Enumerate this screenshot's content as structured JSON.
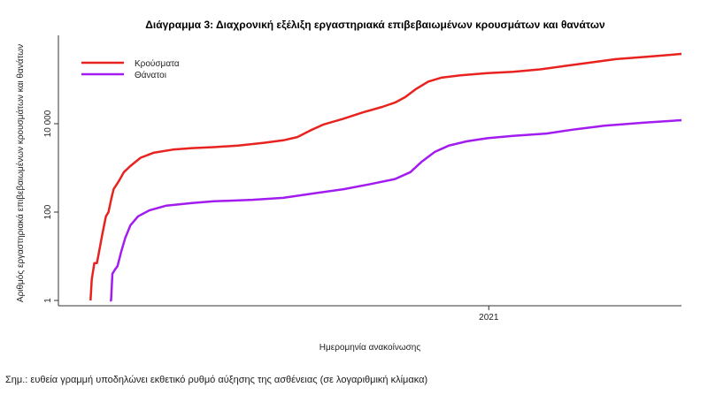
{
  "note": "Σημ.: ευθεία γραμμή υποδηλώνει εκθετικό ρυθμό αύξησης της ασθένειας (σε λογαριθμική κλίμακα)",
  "chart_data": {
    "type": "line",
    "title": "Διάγραμμα 3: Διαχρονική εξέλιξη εργαστηριακά επιβεβαιωμένων κρουσμάτων και θανάτων",
    "xlabel": "Ημερομηνία ανακοίνωσης",
    "ylabel": "Αριθμός εργαστηριακά επιβεβαιωμένων κρουσμάτων και θανάτων",
    "y_scale": "log",
    "ylim": [
      1,
      1000000
    ],
    "y_ticks": [
      {
        "value": 1,
        "label": "1"
      },
      {
        "value": 100,
        "label": "100"
      },
      {
        "value": 10000,
        "label": "10 000"
      }
    ],
    "x_ticks": [
      {
        "value": "2021-01-01",
        "label": "2021"
      }
    ],
    "xlim": [
      "2020-02-01",
      "2021-05-31"
    ],
    "grid": false,
    "legend_position": "top-left",
    "series": [
      {
        "name": "Κρούσματα",
        "color": "#e8231f",
        "points": [
          [
            "2020-02-26",
            1
          ],
          [
            "2020-02-27",
            3
          ],
          [
            "2020-02-29",
            7
          ],
          [
            "2020-03-02",
            7
          ],
          [
            "2020-03-03",
            10
          ],
          [
            "2020-03-06",
            30
          ],
          [
            "2020-03-09",
            80
          ],
          [
            "2020-03-11",
            100
          ],
          [
            "2020-03-13",
            190
          ],
          [
            "2020-03-15",
            330
          ],
          [
            "2020-03-19",
            500
          ],
          [
            "2020-03-23",
            800
          ],
          [
            "2020-03-28",
            1100
          ],
          [
            "2020-04-05",
            1700
          ],
          [
            "2020-04-15",
            2200
          ],
          [
            "2020-04-30",
            2600
          ],
          [
            "2020-05-15",
            2800
          ],
          [
            "2020-06-01",
            2950
          ],
          [
            "2020-06-20",
            3200
          ],
          [
            "2020-07-10",
            3700
          ],
          [
            "2020-07-25",
            4200
          ],
          [
            "2020-08-05",
            5000
          ],
          [
            "2020-08-15",
            7000
          ],
          [
            "2020-08-25",
            9500
          ],
          [
            "2020-09-10",
            13000
          ],
          [
            "2020-09-25",
            18000
          ],
          [
            "2020-10-10",
            24000
          ],
          [
            "2020-10-20",
            30000
          ],
          [
            "2020-10-28",
            40000
          ],
          [
            "2020-11-05",
            60000
          ],
          [
            "2020-11-15",
            90000
          ],
          [
            "2020-11-25",
            110000
          ],
          [
            "2020-12-10",
            125000
          ],
          [
            "2020-12-31",
            140000
          ],
          [
            "2021-01-20",
            150000
          ],
          [
            "2021-02-10",
            170000
          ],
          [
            "2021-02-28",
            200000
          ],
          [
            "2021-03-20",
            240000
          ],
          [
            "2021-04-10",
            290000
          ],
          [
            "2021-05-05",
            330000
          ],
          [
            "2021-05-31",
            380000
          ]
        ]
      },
      {
        "name": "Θάνατοι",
        "color": "#a21cf0",
        "points": [
          [
            "2020-03-12",
            1
          ],
          [
            "2020-03-13",
            1
          ],
          [
            "2020-03-14",
            4
          ],
          [
            "2020-03-16",
            5
          ],
          [
            "2020-03-18",
            6
          ],
          [
            "2020-03-21",
            13
          ],
          [
            "2020-03-24",
            26
          ],
          [
            "2020-03-28",
            50
          ],
          [
            "2020-04-03",
            80
          ],
          [
            "2020-04-12",
            110
          ],
          [
            "2020-04-25",
            140
          ],
          [
            "2020-05-15",
            160
          ],
          [
            "2020-06-01",
            175
          ],
          [
            "2020-07-01",
            190
          ],
          [
            "2020-07-25",
            210
          ],
          [
            "2020-08-20",
            270
          ],
          [
            "2020-09-10",
            330
          ],
          [
            "2020-10-01",
            430
          ],
          [
            "2020-10-20",
            560
          ],
          [
            "2020-11-01",
            800
          ],
          [
            "2020-11-10",
            1400
          ],
          [
            "2020-11-20",
            2300
          ],
          [
            "2020-12-01",
            3200
          ],
          [
            "2020-12-15",
            4000
          ],
          [
            "2020-12-31",
            4700
          ],
          [
            "2021-01-20",
            5300
          ],
          [
            "2021-02-15",
            6000
          ],
          [
            "2021-03-10",
            7500
          ],
          [
            "2021-04-01",
            9000
          ],
          [
            "2021-05-01",
            10500
          ],
          [
            "2021-05-31",
            12000
          ]
        ]
      }
    ]
  }
}
